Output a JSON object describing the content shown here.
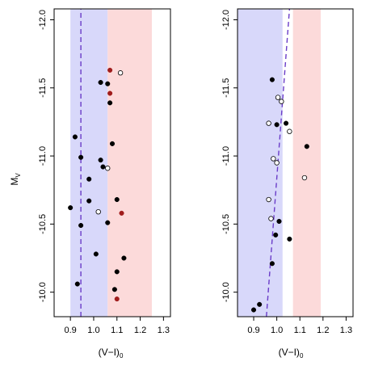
{
  "chart_data": [
    {
      "type": "scatter",
      "panel": "left",
      "xlabel": "(V−I)",
      "xlabel_sub": "0",
      "ylabel": "M",
      "ylabel_sub": "V",
      "xlim": [
        0.83,
        1.33
      ],
      "ylim": [
        -9.82,
        -12.08
      ],
      "y_reversed": true,
      "x_ticks": [
        0.9,
        1.0,
        1.1,
        1.2,
        1.3
      ],
      "x_tick_labels": [
        "0.9",
        "1.0",
        "1.1",
        "1.2",
        "1.3"
      ],
      "y_ticks": [
        -10.0,
        -10.5,
        -11.0,
        -11.5,
        -12.0
      ],
      "y_tick_labels": [
        "-10.0",
        "-10.5",
        "-11.0",
        "-11.5",
        "-12.0"
      ],
      "bands": [
        {
          "x0": 0.9,
          "x1": 1.06,
          "color": "#d8d8fa"
        },
        {
          "x0": 1.06,
          "x1": 1.25,
          "color": "#fcdada"
        }
      ],
      "line": {
        "x": [
          0.945,
          0.945
        ],
        "y": [
          -9.82,
          -12.08
        ],
        "color": "#6a3cc8",
        "dash": "dashed"
      },
      "series": [
        {
          "marker": "filled",
          "color": "#000000",
          "points": [
            [
              1.03,
              -11.54
            ],
            [
              1.06,
              -11.53
            ],
            [
              1.07,
              -11.39
            ],
            [
              0.92,
              -11.14
            ],
            [
              1.08,
              -11.09
            ],
            [
              0.945,
              -10.99
            ],
            [
              1.03,
              -10.97
            ],
            [
              1.04,
              -10.92
            ],
            [
              0.98,
              -10.83
            ],
            [
              0.98,
              -10.67
            ],
            [
              1.1,
              -10.68
            ],
            [
              0.9,
              -10.62
            ],
            [
              1.06,
              -10.51
            ],
            [
              0.945,
              -10.49
            ],
            [
              1.01,
              -10.28
            ],
            [
              1.13,
              -10.25
            ],
            [
              1.1,
              -10.15
            ],
            [
              0.93,
              -10.06
            ],
            [
              1.09,
              -10.02
            ]
          ]
        },
        {
          "marker": "open",
          "color": "#000000",
          "points": [
            [
              1.115,
              -11.61
            ],
            [
              1.06,
              -10.91
            ],
            [
              1.02,
              -10.59
            ]
          ]
        },
        {
          "marker": "filled",
          "color": "#a01c1c",
          "points": [
            [
              1.07,
              -11.63
            ],
            [
              1.07,
              -11.46
            ],
            [
              1.12,
              -10.58
            ],
            [
              1.1,
              -9.95
            ]
          ]
        }
      ]
    },
    {
      "type": "scatter",
      "panel": "right",
      "xlabel": "(V−I)",
      "xlabel_sub": "0",
      "xlim": [
        0.83,
        1.33
      ],
      "ylim": [
        -9.82,
        -12.08
      ],
      "y_reversed": true,
      "x_ticks": [
        0.9,
        1.0,
        1.1,
        1.2,
        1.3
      ],
      "x_tick_labels": [
        "0.9",
        "1.0",
        "1.1",
        "1.2",
        "1.3"
      ],
      "y_ticks": [
        -10.0,
        -10.5,
        -11.0,
        -11.5,
        -12.0
      ],
      "y_tick_labels": [
        "-10.0",
        "-10.5",
        "-11.0",
        "-11.5",
        "-12.0"
      ],
      "bands": [
        {
          "x0": 0.83,
          "x1": 1.025,
          "color": "#d8d8fa"
        },
        {
          "x0": 1.07,
          "x1": 1.19,
          "color": "#fcdada"
        }
      ],
      "line": {
        "x": [
          0.955,
          1.055
        ],
        "y": [
          -9.82,
          -12.08
        ],
        "color": "#6a3cc8",
        "dash": "dashed"
      },
      "series": [
        {
          "marker": "filled",
          "color": "#000000",
          "points": [
            [
              0.98,
              -11.56
            ],
            [
              1.0,
              -11.23
            ],
            [
              1.04,
              -11.24
            ],
            [
              1.13,
              -11.07
            ],
            [
              1.01,
              -10.52
            ],
            [
              0.995,
              -10.42
            ],
            [
              1.055,
              -10.39
            ],
            [
              0.98,
              -10.21
            ],
            [
              0.925,
              -9.91
            ],
            [
              0.9,
              -9.87
            ]
          ]
        },
        {
          "marker": "open",
          "color": "#000000",
          "points": [
            [
              1.005,
              -11.43
            ],
            [
              1.02,
              -11.4
            ],
            [
              0.965,
              -11.24
            ],
            [
              1.055,
              -11.18
            ],
            [
              0.985,
              -10.98
            ],
            [
              1.0,
              -10.95
            ],
            [
              1.12,
              -10.84
            ],
            [
              0.965,
              -10.68
            ],
            [
              0.975,
              -10.54
            ]
          ]
        }
      ]
    }
  ]
}
